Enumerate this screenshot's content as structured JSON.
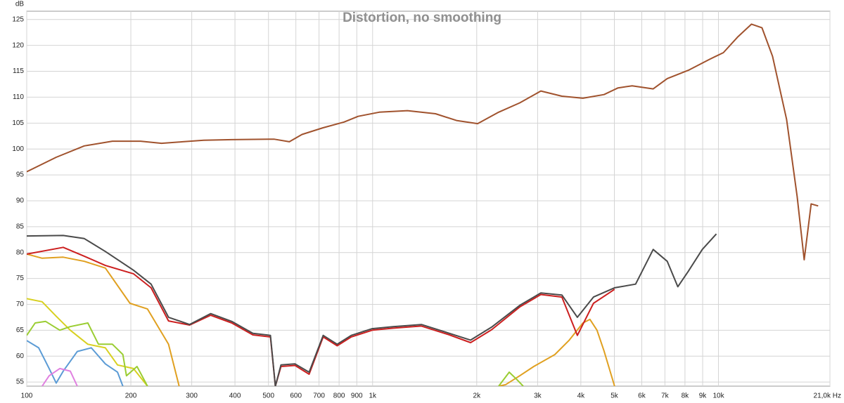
{
  "chart_data": {
    "type": "line",
    "title": "Distortion, no smoothing",
    "y_label": "dB",
    "log_x": true,
    "grid": true,
    "xlim": [
      100,
      21000
    ],
    "ylim": [
      54.2,
      126.6
    ],
    "yticks": [
      55,
      60,
      65,
      70,
      75,
      80,
      85,
      90,
      95,
      100,
      105,
      110,
      115,
      120,
      125
    ],
    "xticks": [
      100,
      200,
      300,
      400,
      500,
      600,
      700,
      800,
      900,
      {
        "value": 1000,
        "label": "1k"
      },
      {
        "value": 2000,
        "label": "2k"
      },
      {
        "value": 3000,
        "label": "3k"
      },
      {
        "value": 4000,
        "label": "4k"
      },
      {
        "value": 5000,
        "label": "5k"
      },
      {
        "value": 6000,
        "label": "6k"
      },
      {
        "value": 7000,
        "label": "7k"
      },
      {
        "value": 8000,
        "label": "8k"
      },
      {
        "value": 9000,
        "label": "9k"
      },
      {
        "value": 10000,
        "label": "10k"
      },
      {
        "value": 21000,
        "label": "21,0k Hz"
      }
    ],
    "series": [
      {
        "color": "#a0522d",
        "x": [
          100,
          121.7,
          146.7,
          176.9,
          213.3,
          245.4,
          282.5,
          325,
          391.6,
          518.4,
          574.5,
          625,
          719,
          827,
          908,
          1045,
          1261,
          1520,
          1748,
          2012,
          2315,
          2664,
          3065,
          3526,
          4056,
          4667,
          5124,
          5628,
          6476,
          7110,
          8181,
          9410,
          10330,
          11350,
          12460,
          13360,
          14330,
          15740,
          16880,
          17690,
          18530,
          19420
        ],
        "values": [
          95.6,
          98.4,
          100.6,
          101.5,
          101.5,
          101.1,
          101.4,
          101.7,
          101.8,
          101.9,
          101.4,
          102.8,
          104.1,
          105.2,
          106.3,
          107.1,
          107.4,
          106.8,
          105.5,
          104.9,
          107.1,
          108.9,
          111.2,
          110.2,
          109.8,
          110.5,
          111.8,
          112.2,
          111.6,
          113.6,
          115.2,
          117.3,
          118.6,
          121.6,
          124.1,
          123.4,
          117.9,
          105.7,
          90.8,
          78.6,
          89.4,
          89.0
        ]
      },
      {
        "color": "#e0a020",
        "x": [
          100,
          110.8,
          127.5,
          146.7,
          168.8,
          198.8,
          223.4,
          257,
          275.9,
          null,
          2315,
          2425,
          2664,
          2924,
          3365,
          3694,
          4056,
          4250,
          4454,
          4667,
          5007
        ],
        "values": [
          79.7,
          78.9,
          79.1,
          78.3,
          77.0,
          70.2,
          69.1,
          62.3,
          54.2,
          null,
          54.2,
          54.5,
          56.2,
          58.0,
          60.3,
          63.0,
          66.4,
          67.1,
          65.0,
          61.0,
          54.2
        ]
      },
      {
        "color": "#d8d020",
        "x": [
          100,
          110.8,
          121.7,
          133.6,
          150.2,
          168.8,
          183,
          203.5,
          223.4
        ],
        "values": [
          71.1,
          70.5,
          67.7,
          65.0,
          62.3,
          61.6,
          58.3,
          57.6,
          54.2
        ]
      },
      {
        "color": "#9acd32",
        "x": [
          100,
          105.8,
          113.4,
          124.6,
          133.6,
          150.2,
          161.2,
          176.9,
          189.7,
          194.2,
          208.4,
          223.4,
          null,
          2315,
          2483,
          2602,
          2726
        ],
        "values": [
          64.0,
          66.4,
          66.7,
          65.0,
          65.7,
          66.4,
          62.3,
          62.3,
          60.3,
          56.2,
          58.0,
          54.2,
          null,
          54.2,
          56.9,
          55.6,
          54.2
        ]
      },
      {
        "color": "#5b9bd5",
        "x": [
          100,
          108.3,
          116.1,
          121.7,
          127.5,
          140,
          153.7,
          168.8,
          183,
          189.7
        ],
        "values": [
          63.0,
          61.6,
          57.6,
          54.8,
          57.1,
          60.9,
          61.6,
          58.5,
          56.9,
          54.2
        ]
      },
      {
        "color": "#e080e0",
        "x": [
          110.8,
          116.1,
          124.6,
          133.6,
          140
        ],
        "values": [
          54.2,
          56.2,
          57.6,
          57.1,
          54.2
        ]
      },
      {
        "color": "#cc1f1f",
        "x": [
          100,
          127.5,
          146.7,
          168.8,
          203.5,
          228.8,
          257,
          295.8,
          340.4,
          391.6,
          450.6,
          506.5,
          523.4,
          543.3,
          596.6,
          655.3,
          719.5,
          790,
          867.3,
          997.7,
          1148,
          1384,
          1668,
          1920,
          2209,
          2664,
          3065,
          3526,
          3908,
          4351,
          5007
        ],
        "values": [
          79.7,
          81.0,
          79.3,
          77.5,
          75.9,
          73.2,
          66.8,
          66.0,
          67.9,
          66.4,
          64.1,
          63.7,
          54.2,
          58.0,
          58.2,
          56.5,
          63.7,
          62.0,
          63.7,
          65.0,
          65.4,
          65.8,
          64.1,
          62.6,
          65.1,
          69.5,
          71.9,
          71.4,
          64.0,
          70.2,
          72.9
        ]
      },
      {
        "color": "#4a4a4a",
        "x": [
          100,
          127.5,
          146.7,
          168.8,
          203.5,
          228.8,
          257,
          295.8,
          340.4,
          391.6,
          450.6,
          506.5,
          523.4,
          543.3,
          596.6,
          655.3,
          719.5,
          790,
          867.3,
          997.7,
          1148,
          1384,
          1668,
          1920,
          2209,
          2664,
          3065,
          3526,
          3908,
          4351,
          5007,
          5759,
          6476,
          7110,
          7628,
          8181,
          8978,
          9857
        ],
        "values": [
          83.2,
          83.3,
          82.7,
          80.2,
          76.6,
          73.9,
          67.5,
          66.1,
          68.2,
          66.7,
          64.4,
          64.0,
          54.2,
          58.3,
          58.5,
          56.9,
          64.0,
          62.3,
          64.0,
          65.3,
          65.7,
          66.1,
          64.4,
          63.1,
          65.6,
          69.8,
          72.2,
          71.8,
          67.5,
          71.4,
          73.2,
          73.9,
          80.6,
          78.3,
          73.4,
          76.4,
          80.6,
          83.6
        ]
      }
    ]
  }
}
